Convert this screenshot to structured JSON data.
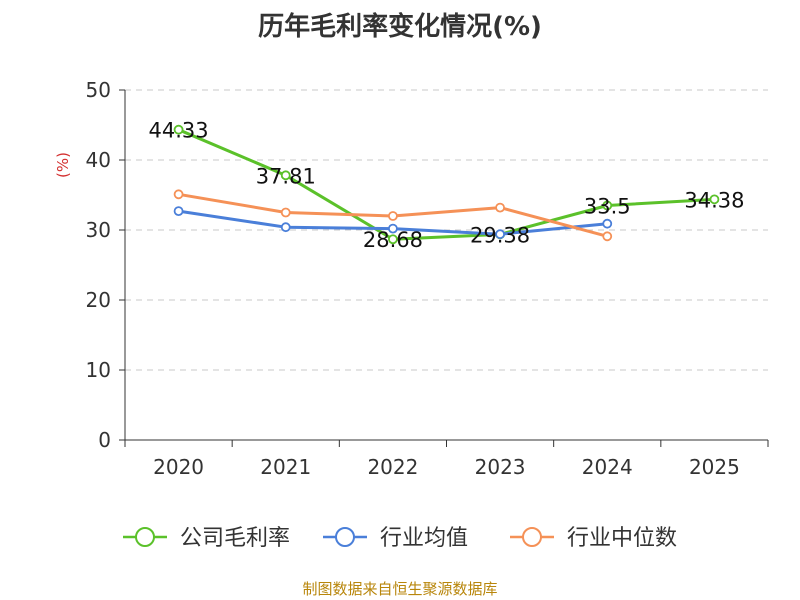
{
  "title": "历年毛利率变化情况(%)",
  "footer": "制图数据来自恒生聚源数据库",
  "chart_data": {
    "type": "line",
    "title": "历年毛利率变化情况(%)",
    "ylabel": "(%)",
    "xlabel": "",
    "ylim": [
      0,
      50
    ],
    "yticks": [
      0,
      10,
      20,
      30,
      40,
      50
    ],
    "categories": [
      "2020",
      "2021",
      "2022",
      "2023",
      "2024",
      "2025"
    ],
    "grid": true,
    "legend": "bottom",
    "series": [
      {
        "name": "公司毛利率",
        "color": "#5bc12a",
        "values": [
          44.33,
          37.81,
          28.68,
          29.38,
          33.5,
          34.38
        ],
        "labels": [
          "44.33",
          "37.81",
          "28.68",
          "29.38",
          "33.5",
          "34.38"
        ]
      },
      {
        "name": "行业均值",
        "color": "#4a7fd9",
        "values": [
          32.7,
          30.4,
          30.2,
          29.4,
          30.9,
          null
        ]
      },
      {
        "name": "行业中位数",
        "color": "#f59157",
        "values": [
          35.1,
          32.5,
          32.0,
          33.2,
          29.1,
          null
        ]
      }
    ]
  }
}
